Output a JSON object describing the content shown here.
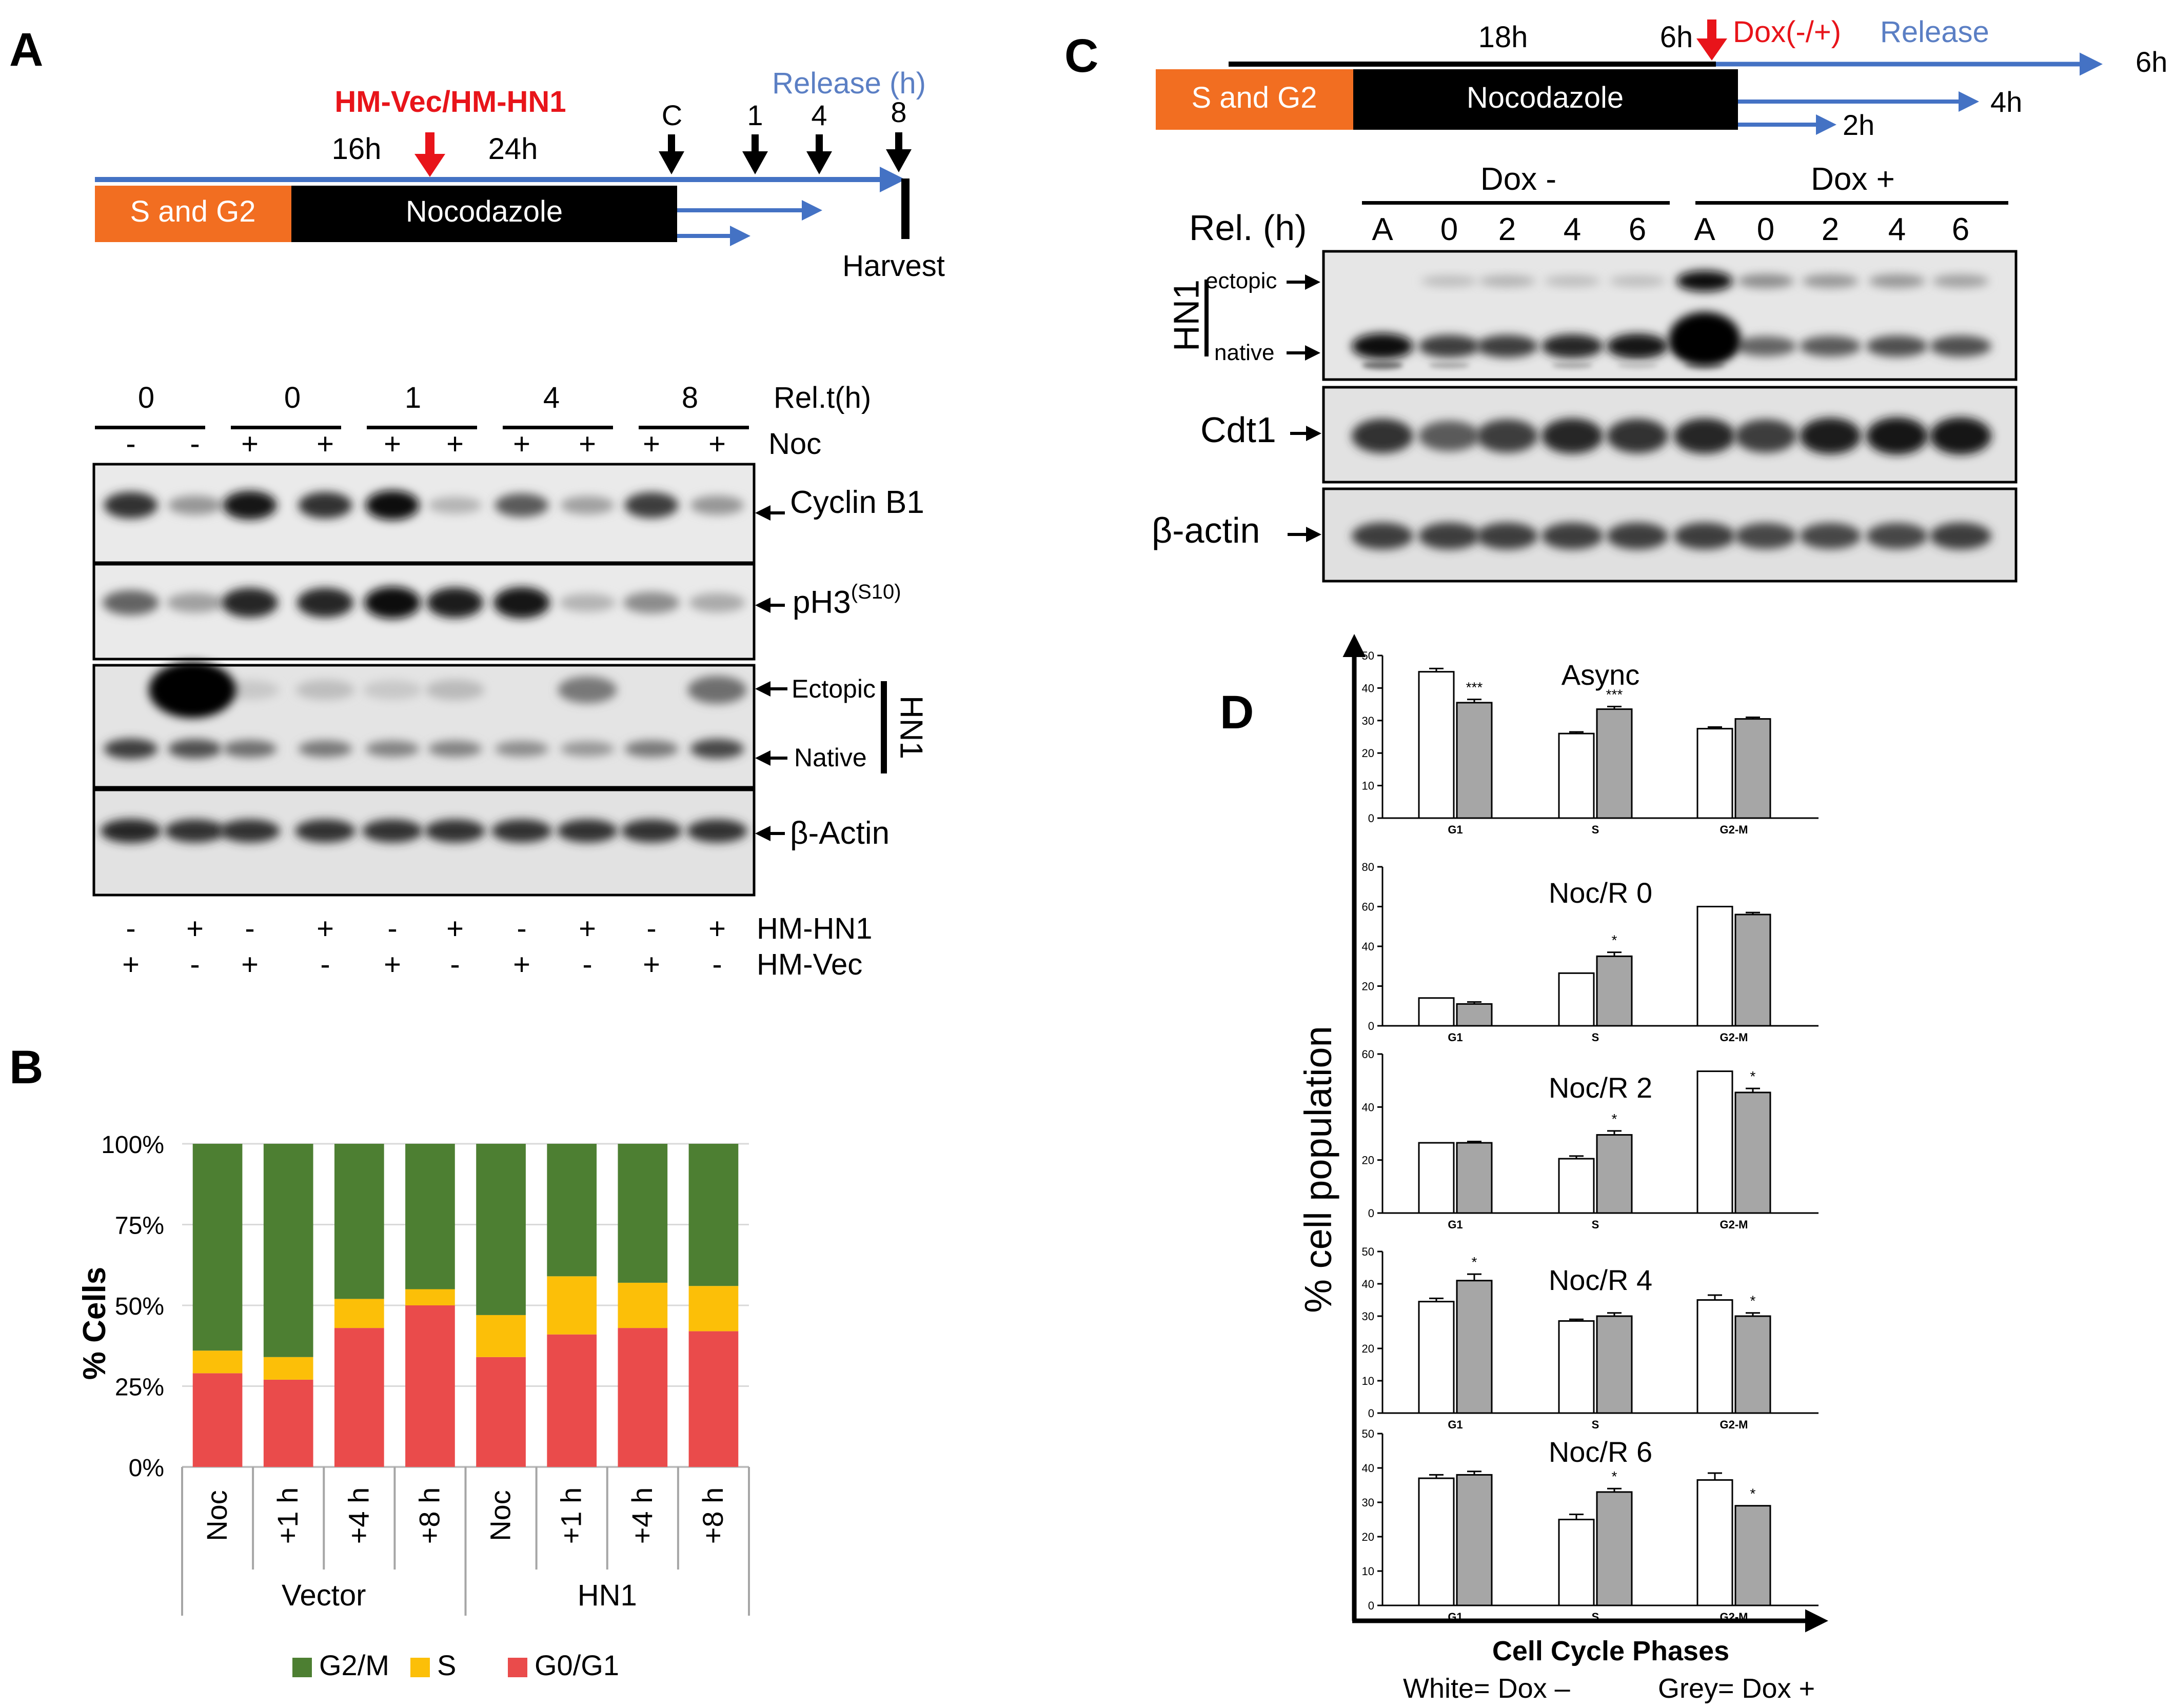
{
  "panel_a": {
    "letter": "A",
    "treatment": "HM-Vec/HM-HN1",
    "release": "Release (h)",
    "t16": "16h",
    "t24": "24h",
    "markers": [
      "C",
      "1",
      "4",
      "8"
    ],
    "bar_sg2": "S and G2",
    "bar_noc": "Nocodazole",
    "harvest": "Harvest",
    "reltimes": [
      "0",
      "0",
      "1",
      "4",
      "8"
    ],
    "reltime_label": "Rel.t(h)",
    "noc_signs": [
      "-",
      "-",
      "+",
      "+",
      "+",
      "+",
      "+",
      "+",
      "+",
      "+"
    ],
    "noc_label": "Noc",
    "blot_labels": {
      "cyclin": "Cyclin B1",
      "ph3": "pH3",
      "ph3_sup": "(S10)",
      "ectopic": "Ectopic",
      "native": "Native",
      "hn1": "HN1",
      "actin": "β-Actin"
    },
    "hn1_signs": [
      "-",
      "+",
      "-",
      "+",
      "-",
      "+",
      "-",
      "+",
      "-",
      "+"
    ],
    "hn1_label": "HM-HN1",
    "vec_signs": [
      "+",
      "-",
      "+",
      "-",
      "+",
      "-",
      "+",
      "-",
      "+",
      "-"
    ],
    "vec_label": "HM-Vec"
  },
  "panel_b": {
    "letter": "B",
    "chart_data": {
      "type": "bar",
      "stacked": true,
      "categories": [
        "Noc",
        "+1 h",
        "+4 h",
        "+8 h",
        "Noc",
        "+1 h",
        "+4 h",
        "+8 h"
      ],
      "groups": [
        "Vector",
        "HN1"
      ],
      "ylabel": "% Cells",
      "yticks": [
        "0%",
        "25%",
        "50%",
        "75%",
        "100%"
      ],
      "ylim": [
        0,
        100
      ],
      "series": [
        {
          "name": "G0/G1",
          "color": "#ea4b4b",
          "values": [
            29,
            27,
            43,
            50,
            34,
            41,
            43,
            42
          ]
        },
        {
          "name": "S",
          "color": "#fcbf08",
          "values": [
            7,
            7,
            9,
            5,
            13,
            18,
            14,
            14
          ]
        },
        {
          "name": "G2/M",
          "color": "#4d7f32",
          "values": [
            64,
            66,
            48,
            45,
            53,
            41,
            43,
            44
          ]
        }
      ],
      "legend_order": [
        "G2/M",
        "S",
        "G0/G1"
      ],
      "legend_position": "bottom"
    }
  },
  "panel_c": {
    "letter": "C",
    "t18": "18h",
    "t6": "6h",
    "dox": "Dox(-/+)",
    "release": "Release",
    "bar_sg2": "S and G2",
    "bar_noc": "Nocodazole",
    "arrows": [
      "6h",
      "4h",
      "2h"
    ],
    "dox_minus": "Dox -",
    "dox_plus": "Dox +",
    "rel_label": "Rel. (h)",
    "lanes": [
      "A",
      "0",
      "2",
      "4",
      "6",
      "A",
      "0",
      "2",
      "4",
      "6"
    ],
    "hn1": "HN1",
    "ectopic": "ectopic",
    "native": "native",
    "cdt1": "Cdt1",
    "actin": "β-actin"
  },
  "panel_d": {
    "letter": "D",
    "ylabel": "% cell population",
    "xlabel": "Cell Cycle Phases",
    "note_white": "White= Dox –",
    "note_grey": "Grey= Dox +",
    "chart_data": [
      {
        "type": "bar",
        "title": "Async",
        "categories": [
          "G1",
          "S",
          "G2-M"
        ],
        "ylim": [
          0,
          50
        ],
        "yticks": [
          "0",
          "10",
          "20",
          "30",
          "40",
          "50"
        ],
        "series": [
          {
            "values": [
              45,
              26,
              27.5
            ],
            "errors": [
              1,
              0.5,
              0.5
            ]
          },
          {
            "values": [
              35.5,
              33.5,
              30.5
            ],
            "errors": [
              1,
              0.8,
              0.5
            ]
          }
        ],
        "sig": [
          "***",
          "***",
          ""
        ]
      },
      {
        "type": "bar",
        "title": "Noc/R 0",
        "categories": [
          "G1",
          "S",
          "G2-M"
        ],
        "ylim": [
          0,
          80
        ],
        "yticks": [
          "0",
          "20",
          "40",
          "60",
          "80"
        ],
        "series": [
          {
            "values": [
              14,
              26.5,
              60
            ],
            "errors": [
              0,
              0,
              0
            ]
          },
          {
            "values": [
              11,
              35,
              56
            ],
            "errors": [
              1,
              2,
              1
            ]
          }
        ],
        "sig": [
          "",
          "*",
          ""
        ]
      },
      {
        "type": "bar",
        "title": "Noc/R 2",
        "categories": [
          "G1",
          "S",
          "G2-M"
        ],
        "ylim": [
          0,
          60
        ],
        "yticks": [
          "0",
          "20",
          "40",
          "60"
        ],
        "series": [
          {
            "values": [
              26.5,
              20.5,
              53.5
            ],
            "errors": [
              0,
              1,
              0
            ]
          },
          {
            "values": [
              26.5,
              29.5,
              45.5
            ],
            "errors": [
              0.5,
              1.5,
              1.5
            ]
          }
        ],
        "sig": [
          "",
          "*",
          "*"
        ]
      },
      {
        "type": "bar",
        "title": "Noc/R 4",
        "categories": [
          "G1",
          "S",
          "G2-M"
        ],
        "ylim": [
          0,
          50
        ],
        "yticks": [
          "0",
          "10",
          "20",
          "30",
          "40",
          "50"
        ],
        "series": [
          {
            "values": [
              34.5,
              28.5,
              35
            ],
            "errors": [
              1,
              0.5,
              1.5
            ]
          },
          {
            "values": [
              41,
              30,
              30
            ],
            "errors": [
              2,
              1,
              1
            ]
          }
        ],
        "sig": [
          "*",
          "",
          "*"
        ]
      },
      {
        "type": "bar",
        "title": "Noc/R 6",
        "categories": [
          "G1",
          "S",
          "G2-M"
        ],
        "ylim": [
          0,
          50
        ],
        "yticks": [
          "0",
          "10",
          "20",
          "30",
          "40",
          "50"
        ],
        "series": [
          {
            "values": [
              37,
              25,
              36.5
            ],
            "errors": [
              1,
              1.5,
              2
            ]
          },
          {
            "values": [
              38,
              33,
              29
            ],
            "errors": [
              1,
              1,
              0
            ]
          }
        ],
        "sig": [
          "",
          "*",
          "*"
        ]
      }
    ]
  }
}
